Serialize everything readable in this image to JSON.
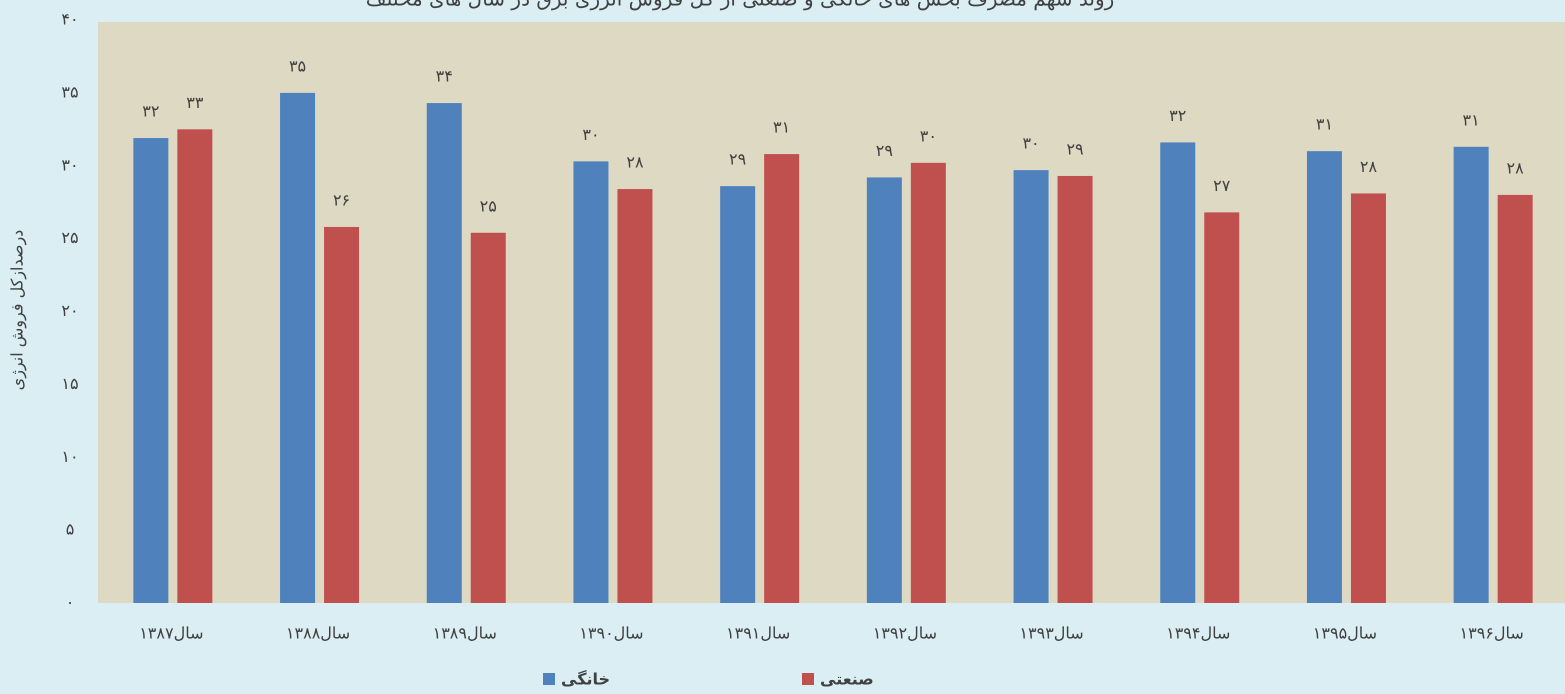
{
  "chart_data": {
    "type": "bar",
    "title": "روند سهم مصرف بخش های خانگی و صنعتی از کل فروش انرژی برق در سال های مختلف",
    "y_label": "درصدازکل فروش انرژی",
    "categories": [
      "سال۱۳۸۷",
      "سال۱۳۸۸",
      "سال۱۳۸۹",
      "سال۱۳۹۰",
      "سال۱۳۹۱",
      "سال۱۳۹۲",
      "سال۱۳۹۳",
      "سال۱۳۹۴",
      "سال۱۳۹۵",
      "سال۱۳۹۶"
    ],
    "series": [
      {
        "name": "خانگی",
        "color": "#4f81bd",
        "values": [
          31.9,
          35.0,
          34.3,
          30.3,
          28.6,
          29.2,
          29.7,
          31.6,
          31.0,
          31.3
        ],
        "value_labels": [
          "۳۲",
          "۳۵",
          "۳۴",
          "۳۰",
          "۲۹",
          "۲۹",
          "۳۰",
          "۳۲",
          "۳۱",
          "۳۱"
        ]
      },
      {
        "name": "صنعتی",
        "color": "#c0504d",
        "values": [
          32.5,
          25.8,
          25.4,
          28.4,
          30.8,
          30.2,
          29.3,
          26.8,
          28.1,
          28.0
        ],
        "value_labels": [
          "۳۳",
          "۲۶",
          "۲۵",
          "۲۸",
          "۳۱",
          "۳۰",
          "۲۹",
          "۲۷",
          "۲۸",
          "۲۸"
        ]
      }
    ],
    "ylim": [
      0,
      40
    ],
    "yticks": [
      {
        "value": 0,
        "label": "۰"
      },
      {
        "value": 5,
        "label": "۵"
      },
      {
        "value": 10,
        "label": "۱۰"
      },
      {
        "value": 15,
        "label": "۱۵"
      },
      {
        "value": 20,
        "label": "۲۰"
      },
      {
        "value": 25,
        "label": "۲۵"
      },
      {
        "value": 30,
        "label": "۳۰"
      },
      {
        "value": 35,
        "label": "۳۵"
      },
      {
        "value": 40,
        "label": "۴۰"
      }
    ],
    "grid": false,
    "legend": "bottom"
  }
}
